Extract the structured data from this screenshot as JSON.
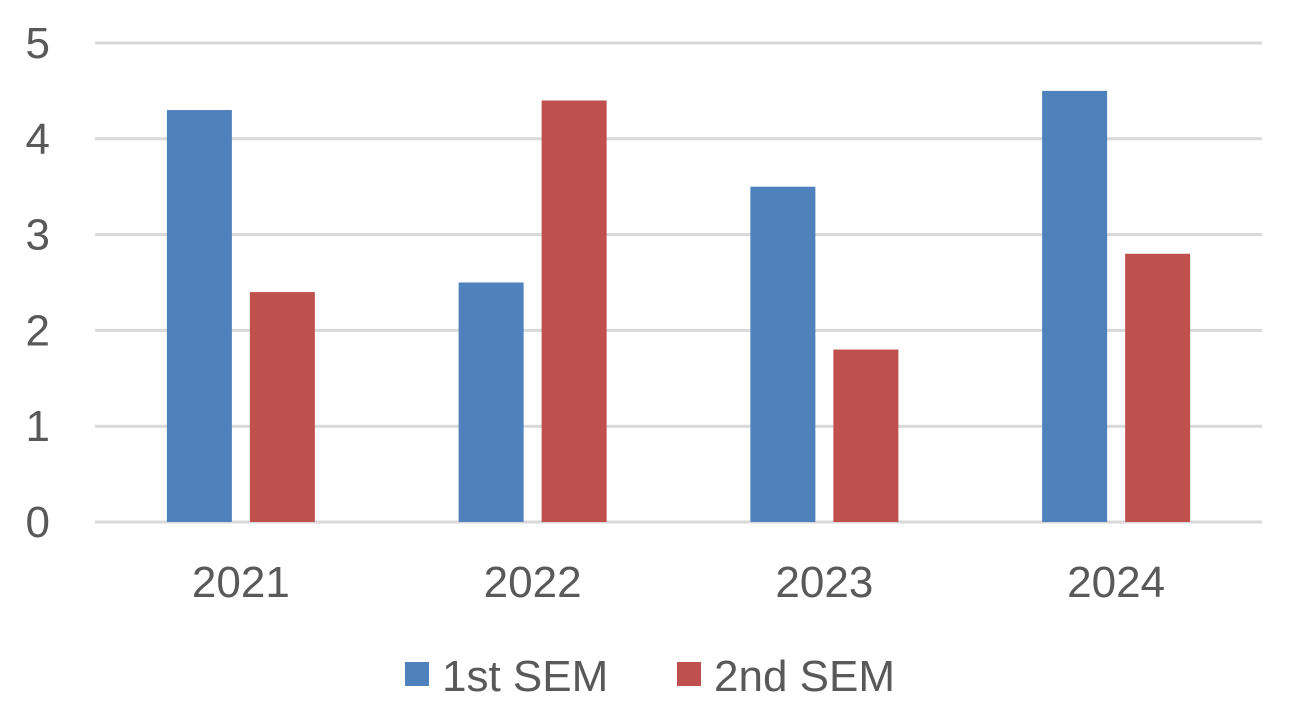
{
  "chart_data": {
    "type": "bar",
    "title": "",
    "xlabel": "",
    "ylabel": "",
    "categories": [
      "2021",
      "2022",
      "2023",
      "2024"
    ],
    "series": [
      {
        "name": "1st SEM",
        "values": [
          4.3,
          2.5,
          3.5,
          4.5
        ],
        "color": "#4F81BD"
      },
      {
        "name": "2nd SEM",
        "values": [
          2.4,
          4.4,
          1.8,
          2.8
        ],
        "color": "#C0504D"
      }
    ],
    "ylim": [
      0,
      5
    ],
    "yticks": [
      "0",
      "1",
      "2",
      "3",
      "4",
      "5"
    ],
    "grid": true,
    "gridColor": "#D9D9D9",
    "textColor": "#595959",
    "legend": "bottom-center"
  }
}
